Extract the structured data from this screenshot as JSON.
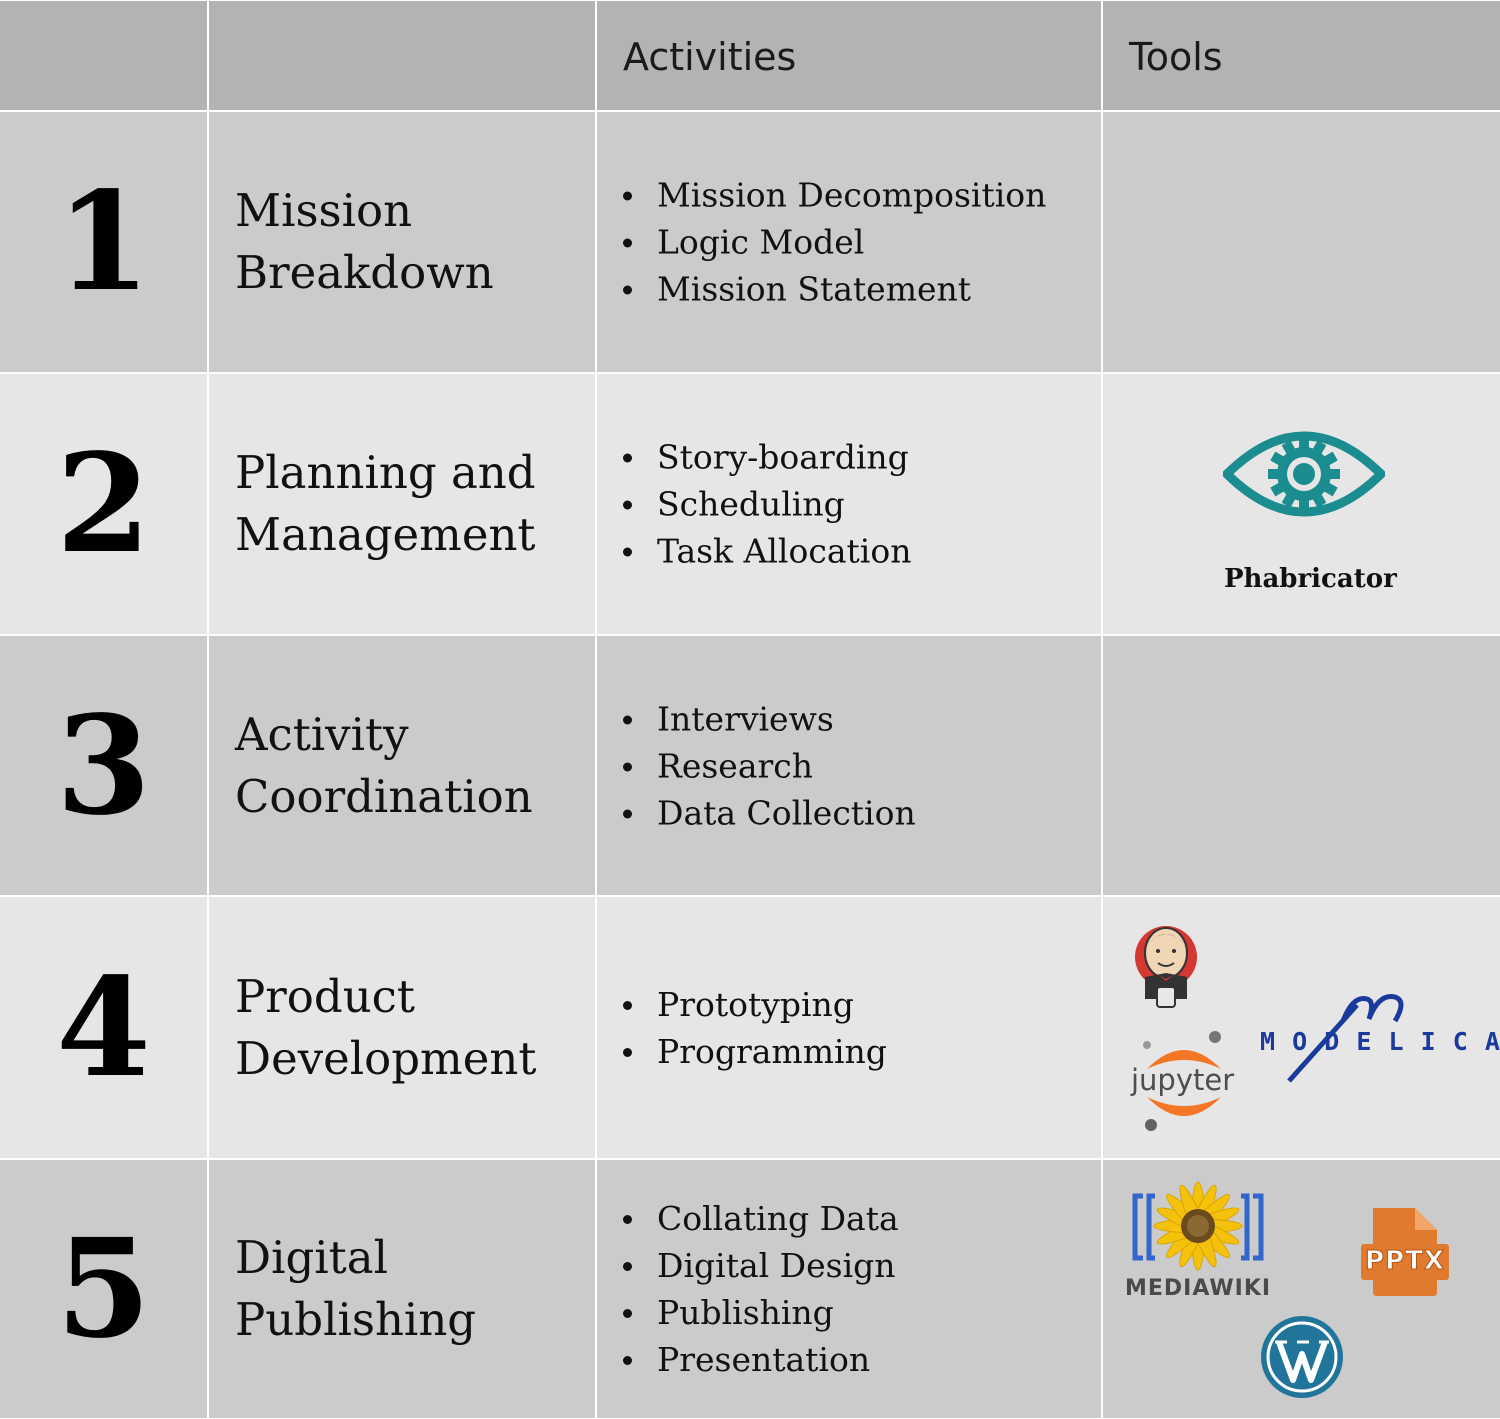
{
  "header": {
    "col1": "",
    "col2": "",
    "activities": "Activities",
    "tools": "Tools"
  },
  "rows": [
    {
      "number": "1",
      "title_lines": [
        "Mission",
        "Breakdown"
      ],
      "activities": [
        "Mission Decomposition",
        "Logic Model",
        "Mission Statement"
      ]
    },
    {
      "number": "2",
      "title_lines": [
        "Planning and",
        "Management"
      ],
      "activities": [
        "Story-boarding",
        "Scheduling",
        "Task Allocation"
      ]
    },
    {
      "number": "3",
      "title_lines": [
        "Activity",
        "Coordination"
      ],
      "activities": [
        "Interviews",
        "Research",
        "Data Collection"
      ]
    },
    {
      "number": "4",
      "title_lines": [
        "Product",
        "Development"
      ],
      "activities": [
        "Prototyping",
        "Programming"
      ]
    },
    {
      "number": "5",
      "title_lines": [
        "Digital",
        "Publishing"
      ],
      "activities": [
        "Collating Data",
        "Digital Design",
        "Publishing",
        "Presentation"
      ]
    }
  ],
  "tools": {
    "phabricator": {
      "label": "Phabricator",
      "icon": "phabricator-eye-gear-icon",
      "color": "#1b8c8f"
    },
    "jenkins": {
      "icon": "jenkins-butler-icon",
      "color": "#d33833"
    },
    "jupyter": {
      "label": "jupyter",
      "icon": "jupyter-icon",
      "color": "#f37726"
    },
    "modelica": {
      "letters": [
        "M",
        "O",
        "D",
        "E",
        "L",
        "I",
        "C",
        "A"
      ],
      "icon": "modelica-logo-icon",
      "color": "#1a3b9c"
    },
    "mediawiki": {
      "label": "MEDIAWIKI",
      "icon": "mediawiki-sunflower-icon",
      "color": "#36c"
    },
    "pptx": {
      "label": "PPTX",
      "icon": "pptx-file-icon",
      "color": "#e07a2f"
    },
    "wordpress": {
      "icon": "wordpress-icon",
      "color": "#21759b"
    }
  },
  "colors": {
    "header_bg": "#b3b3b3",
    "row_dark": "#cbcbcb",
    "row_light": "#e6e6e6"
  }
}
